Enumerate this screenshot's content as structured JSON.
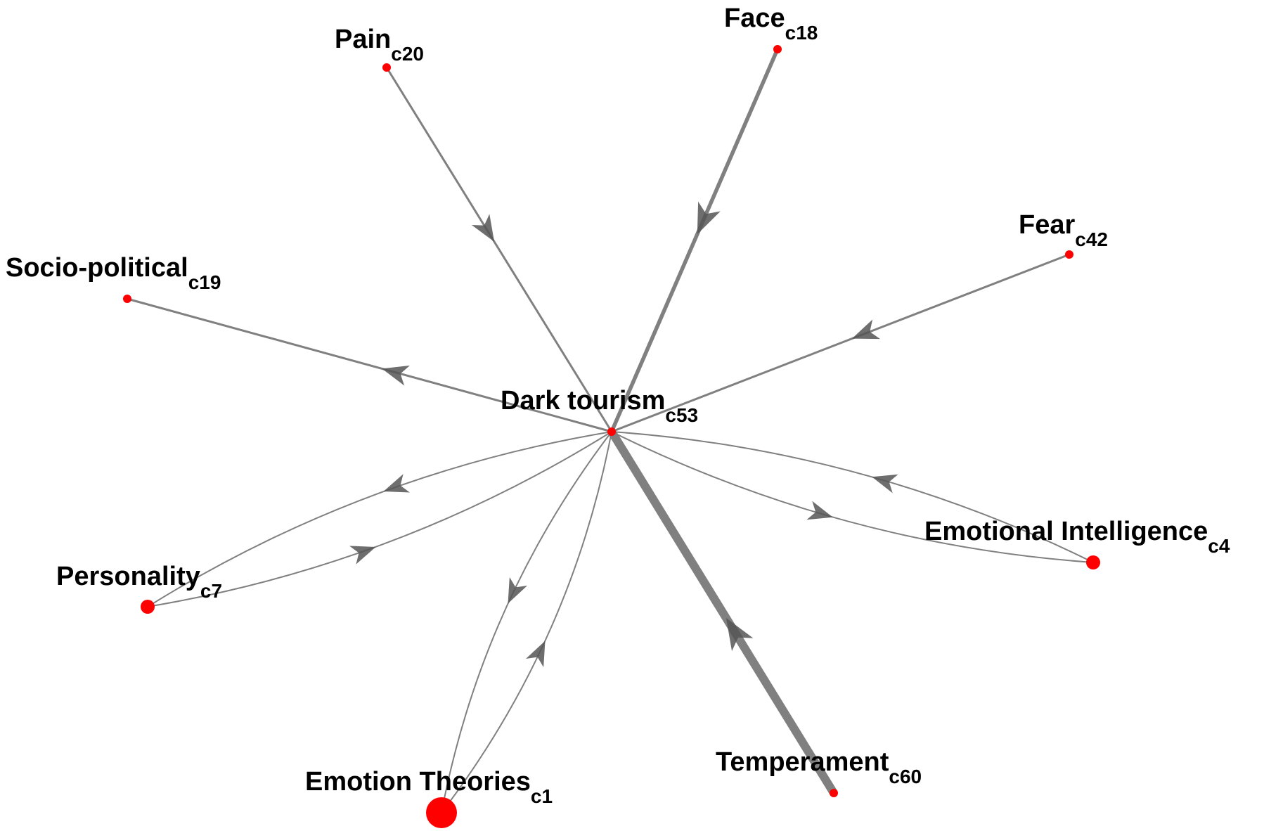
{
  "colors": {
    "node": "#ff0000",
    "edge": "#808080",
    "arrow": "#555555",
    "label": "#000000"
  },
  "nodes": [
    {
      "id": "c53",
      "name": "Dark tourism",
      "sub": "c53",
      "size": "small"
    },
    {
      "id": "c20",
      "name": "Pain",
      "sub": "c20",
      "size": "small"
    },
    {
      "id": "c18",
      "name": "Face",
      "sub": "c18",
      "size": "small"
    },
    {
      "id": "c42",
      "name": "Fear",
      "sub": "c42",
      "size": "small"
    },
    {
      "id": "c19",
      "name": "Socio-political",
      "sub": "c19",
      "size": "small"
    },
    {
      "id": "c4",
      "name": "Emotional Intelligence",
      "sub": "c4",
      "size": "medium"
    },
    {
      "id": "c7",
      "name": "Personality",
      "sub": "c7",
      "size": "medium"
    },
    {
      "id": "c1",
      "name": "Emotion Theories",
      "sub": "c1",
      "size": "large"
    },
    {
      "id": "c60",
      "name": "Temperament",
      "sub": "c60",
      "size": "small"
    }
  ],
  "edges": [
    {
      "from": "c20",
      "to": "c53",
      "weight": "light"
    },
    {
      "from": "c18",
      "to": "c53",
      "weight": "medium"
    },
    {
      "from": "c42",
      "to": "c53",
      "weight": "light"
    },
    {
      "from": "c53",
      "to": "c19",
      "weight": "light"
    },
    {
      "from": "c53",
      "to": "c4",
      "weight": "thin"
    },
    {
      "from": "c4",
      "to": "c53",
      "weight": "thin"
    },
    {
      "from": "c53",
      "to": "c7",
      "weight": "thin"
    },
    {
      "from": "c7",
      "to": "c53",
      "weight": "thin"
    },
    {
      "from": "c53",
      "to": "c1",
      "weight": "thin"
    },
    {
      "from": "c1",
      "to": "c53",
      "weight": "thin"
    },
    {
      "from": "c60",
      "to": "c53",
      "weight": "heavy"
    }
  ]
}
